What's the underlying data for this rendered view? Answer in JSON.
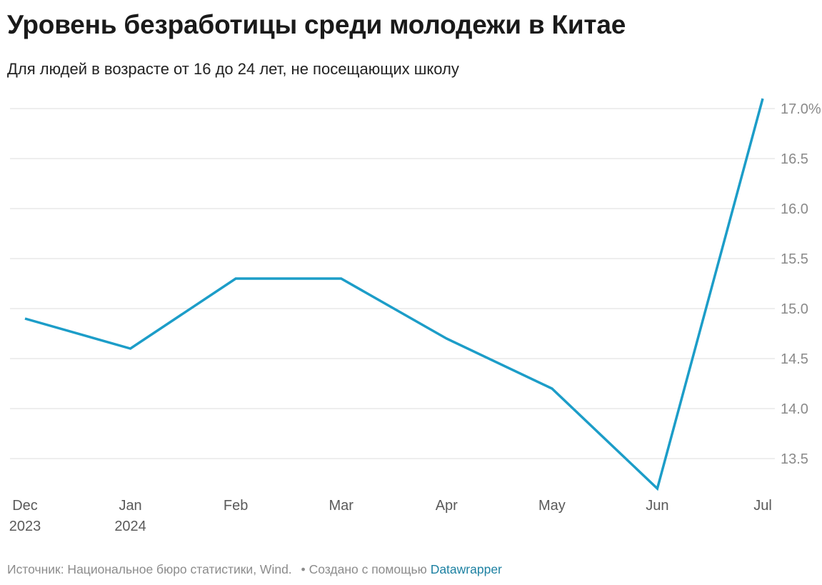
{
  "header": {
    "title": "Уровень безработицы среди молодежи в Китае",
    "subtitle": "Для людей в возрасте от 16 до 24 лет, не посещающих школу"
  },
  "footer": {
    "source": "Источник: Национальное бюро статистики, Wind.",
    "separator": "•",
    "created_with": "Создано с помощью",
    "tool": "Datawrapper"
  },
  "colors": {
    "line": "#1c9dc8",
    "grid": "#e3e3e3",
    "tick_text": "#8a8a8a",
    "x_text": "#5a5a5a",
    "link": "#1d81a2"
  },
  "chart_data": {
    "type": "line",
    "title": "Уровень безработицы среди молодежи в Китае",
    "subtitle": "Для людей в возрасте от 16 до 24 лет, не посещающих школу",
    "xlabel": "",
    "ylabel": "",
    "x": [
      "Dec 2023",
      "Jan 2024",
      "Feb",
      "Mar",
      "Apr",
      "May",
      "Jun",
      "Jul"
    ],
    "x_tick_labels": [
      [
        "Dec",
        "2023"
      ],
      [
        "Jan",
        "2024"
      ],
      [
        "Feb"
      ],
      [
        "Mar"
      ],
      [
        "Apr"
      ],
      [
        "May"
      ],
      [
        "Jun"
      ],
      [
        "Jul"
      ]
    ],
    "series": [
      {
        "values": [
          14.9,
          14.6,
          15.3,
          15.3,
          14.7,
          14.2,
          13.2,
          17.1
        ]
      }
    ],
    "y_ticks": [
      13.5,
      14.0,
      14.5,
      15.0,
      15.5,
      16.0,
      16.5,
      17.0
    ],
    "y_tick_labels": [
      "13.5",
      "14.0",
      "14.5",
      "15.0",
      "15.5",
      "16.0",
      "16.5",
      "17.0%"
    ],
    "ylim": [
      13.2,
      17.1
    ],
    "y_axis_position": "right",
    "grid": true,
    "legend": "none"
  }
}
